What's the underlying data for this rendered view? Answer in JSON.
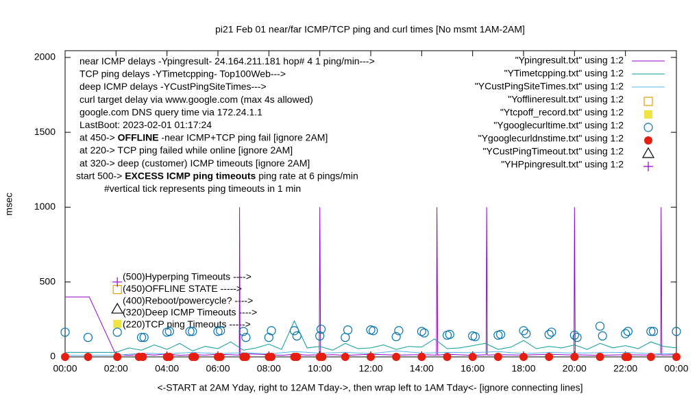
{
  "chart_data": {
    "type": "line",
    "title": "pi21 Feb 01  near/far ICMP/TCP ping and curl times [No msmt 1AM-2AM]",
    "xlabel": "<-START at 2AM Yday, right to 12AM Tday->, then wrap left to 1AM Tday<- [ignore connecting lines]",
    "ylabel": "msec",
    "xlim": [
      0,
      24
    ],
    "ylim": [
      0,
      2045
    ],
    "xticks": [
      {
        "value": 0,
        "label": "00:00"
      },
      {
        "value": 2,
        "label": "02:00"
      },
      {
        "value": 4,
        "label": "04:00"
      },
      {
        "value": 6,
        "label": "06:00"
      },
      {
        "value": 8,
        "label": "08:00"
      },
      {
        "value": 10,
        "label": "10:00"
      },
      {
        "value": 12,
        "label": "12:00"
      },
      {
        "value": 14,
        "label": "14:00"
      },
      {
        "value": 16,
        "label": "16:00"
      },
      {
        "value": 18,
        "label": "18:00"
      },
      {
        "value": 20,
        "label": "20:00"
      },
      {
        "value": 22,
        "label": "22:00"
      },
      {
        "value": 24,
        "label": "00:00"
      }
    ],
    "yticks": [
      0,
      500,
      1000,
      1500,
      2000
    ],
    "notes": [
      [
        "near ICMP delays -Ypingresult- 24.164.211.181 hop# 4 1 ping/min--->"
      ],
      [
        "TCP ping delays -YTimetcpping- Top100Web--->"
      ],
      [
        "deep ICMP delays -YCustPingSiteTimes--->"
      ],
      [
        "curl target delay via www.google.com (max 4s allowed)"
      ],
      [
        "google.com DNS query time via 172.24.1.1"
      ],
      [
        "LastBoot: 2023-02-01 01:17:24"
      ],
      [
        "at 450-> ",
        {
          "bold": "OFFLINE"
        },
        " -near ICMP+TCP ping fail [ignore 2AM]"
      ],
      [
        "at 220-> TCP ping failed while online [ignore 2AM]"
      ],
      [
        "at 320-> deep (customer) ICMP timeouts [ignore 2AM]"
      ],
      [
        "start 500-> ",
        {
          "bold": "EXCESS ICMP ping timeouts"
        },
        " ping rate at 6 pings/min"
      ],
      [
        "#vertical tick represents ping timeouts in 1 min"
      ]
    ],
    "marker_labels": [
      "(500)Hyperping Timeouts ---->",
      "(450)OFFLINE STATE ----->",
      "(400)Reboot/powercycle? ---->",
      "(320)Deep ICMP Timeouts ---->",
      "(220)TCP ping Timeouts ----->"
    ],
    "series": [
      {
        "name": "\"Ypingresult.txt\" using 1:2",
        "color": "#9400d3",
        "style": "line",
        "x": [
          0,
          0.95,
          2.0,
          2.1,
          2.5,
          3,
          3.5,
          4,
          4.5,
          5,
          5.5,
          6,
          6.5,
          6.84,
          6.85,
          6.87,
          7.2,
          8,
          8.5,
          9,
          9.5,
          9.98,
          10.0,
          10.03,
          10.5,
          11,
          12,
          13,
          14,
          14.58,
          14.6,
          14.63,
          15,
          16,
          16.53,
          16.55,
          16.58,
          17,
          18,
          19,
          19.98,
          20.0,
          20.03,
          21,
          22,
          23,
          23.38,
          23.4,
          23.43,
          24
        ],
        "values": [
          400,
          400,
          12,
          15,
          10,
          18,
          12,
          20,
          10,
          15,
          12,
          18,
          14,
          12,
          1000,
          12,
          20,
          15,
          10,
          18,
          12,
          14,
          1000,
          12,
          15,
          10,
          18,
          12,
          15,
          12,
          1000,
          12,
          18,
          10,
          14,
          1000,
          12,
          15,
          12,
          18,
          12,
          1000,
          14,
          10,
          15,
          12,
          14,
          1000,
          12,
          15
        ]
      },
      {
        "name": "\"YTimetcpping.txt\" using 1:2",
        "color": "#0b9c9c",
        "style": "line",
        "x": [
          0,
          0.5,
          1,
          1.5,
          2,
          2.5,
          3,
          3.5,
          4,
          4.5,
          5,
          5.5,
          6,
          6.5,
          7,
          7.5,
          8,
          8.5,
          9,
          9.5,
          10,
          10.5,
          11,
          11.5,
          12,
          12.5,
          13,
          13.5,
          14,
          14.5,
          15,
          15.5,
          16,
          16.5,
          17,
          17.5,
          18,
          18.5,
          19,
          19.5,
          20,
          20.5,
          21,
          21.5,
          22,
          22.5,
          23,
          23.5,
          24
        ],
        "values": [
          30,
          30,
          30,
          30,
          30,
          60,
          45,
          80,
          50,
          90,
          40,
          70,
          55,
          100,
          45,
          60,
          85,
          50,
          240,
          60,
          70,
          45,
          90,
          55,
          60,
          80,
          50,
          70,
          65,
          120,
          55,
          60,
          75,
          90,
          50,
          65,
          110,
          55,
          70,
          60,
          80,
          50,
          90,
          60,
          75,
          55,
          100,
          70,
          60
        ]
      },
      {
        "name": "\"YCustPingSiteTimes.txt\" using 1:2",
        "color": "#56b4e9",
        "style": "line",
        "x": [
          0,
          1,
          2,
          3,
          4,
          5,
          6,
          7,
          8,
          9,
          10,
          11,
          12,
          13,
          14,
          15,
          16,
          17,
          18,
          19,
          20,
          21,
          22,
          23,
          24
        ],
        "values": [
          10,
          10,
          10,
          25,
          20,
          30,
          22,
          28,
          20,
          35,
          25,
          30,
          22,
          40,
          25,
          30,
          28,
          35,
          22,
          30,
          25,
          28,
          30,
          22,
          20
        ]
      },
      {
        "name": "\"Yofflineresult.txt\" using 1:2",
        "color": "#e69f00",
        "style": "square-open",
        "x": [
          2.05
        ],
        "values": [
          450
        ]
      },
      {
        "name": "\"Ytcpoff_record.txt\" using 1:2",
        "color": "#f0e442",
        "style": "square-filled",
        "x": [
          2.05
        ],
        "values": [
          220
        ]
      },
      {
        "name": "\"Ygooglecurltime.txt\" using 1:2",
        "color": "#0072b2",
        "style": "circle-open",
        "x": [
          0,
          0.9,
          2.05,
          3,
          3.1,
          4,
          4.1,
          4.9,
          5,
          6,
          6.1,
          7,
          7.1,
          8,
          8.1,
          9,
          9.1,
          10,
          10.05,
          11,
          11.1,
          12,
          12.1,
          13,
          13.1,
          14,
          14.1,
          15,
          15.1,
          16,
          16.1,
          17,
          17.1,
          18,
          18.1,
          19,
          19.1,
          20,
          20.1,
          21,
          21.1,
          22,
          22.1,
          23,
          23.1,
          24
        ],
        "values": [
          165,
          130,
          165,
          130,
          130,
          165,
          170,
          170,
          170,
          170,
          175,
          170,
          130,
          130,
          175,
          175,
          140,
          140,
          185,
          130,
          180,
          180,
          175,
          135,
          175,
          170,
          160,
          145,
          150,
          140,
          135,
          145,
          150,
          175,
          155,
          150,
          165,
          145,
          130,
          205,
          140,
          155,
          170,
          170,
          170,
          170
        ]
      },
      {
        "name": "\"Ygooglecurldnstime.txt\" using 1:2",
        "color": "#e51e10",
        "style": "circle-filled",
        "x": [
          0,
          0.9,
          2.05,
          2.9,
          3.05,
          4,
          4.1,
          5,
          5.1,
          6,
          6.1,
          7,
          7.1,
          8,
          8.1,
          9,
          9.1,
          10,
          10.1,
          11,
          12,
          13,
          14,
          15,
          16,
          17,
          18,
          19,
          20,
          21,
          22,
          22.1,
          23,
          24
        ],
        "values": [
          0,
          0,
          0,
          0,
          0,
          0,
          0,
          0,
          0,
          0,
          0,
          0,
          0,
          0,
          0,
          0,
          0,
          0,
          0,
          0,
          0,
          0,
          0,
          0,
          0,
          0,
          0,
          0,
          0,
          0,
          0,
          0,
          0,
          0
        ]
      },
      {
        "name": "\"YCustPingTimeout.txt\" using 1:2",
        "color": "#000000",
        "style": "triangle-open",
        "x": [
          2.05
        ],
        "values": [
          320
        ]
      },
      {
        "name": "\"YHPpingresult.txt\" using 1:2",
        "color": "#9400d3",
        "style": "plus",
        "x": [
          2.05
        ],
        "values": [
          500
        ]
      }
    ]
  }
}
